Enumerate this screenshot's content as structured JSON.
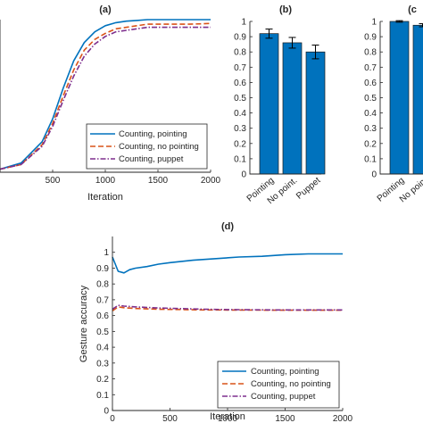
{
  "colors": {
    "pointing": "#0072BD",
    "no_pointing": "#D95319",
    "puppet": "#7E2F8E",
    "bar": "#0072BD"
  },
  "chart_data": [
    {
      "id": "a",
      "type": "line",
      "title": "(a)",
      "xlabel": "Iteration",
      "ylabel": "",
      "xlim": [
        0,
        2000
      ],
      "ylim": [
        0,
        1
      ],
      "xticks": [
        500,
        1000,
        1500,
        2000
      ],
      "legend_position": "bottom-right",
      "series": [
        {
          "name": "Counting, pointing",
          "style": "solid",
          "x": [
            0,
            200,
            400,
            500,
            600,
            700,
            800,
            900,
            1000,
            1100,
            1200,
            1300,
            1400,
            1600,
            1800,
            2000
          ],
          "y": [
            0.02,
            0.06,
            0.2,
            0.35,
            0.55,
            0.73,
            0.85,
            0.92,
            0.96,
            0.98,
            0.99,
            0.995,
            1.0,
            1.0,
            1.0,
            1.0
          ]
        },
        {
          "name": "Counting, no pointing",
          "style": "dashed",
          "x": [
            0,
            200,
            400,
            500,
            600,
            700,
            800,
            900,
            1000,
            1100,
            1200,
            1300,
            1400,
            1600,
            1800,
            2000
          ],
          "y": [
            0.02,
            0.05,
            0.18,
            0.32,
            0.5,
            0.67,
            0.8,
            0.87,
            0.91,
            0.94,
            0.95,
            0.96,
            0.97,
            0.97,
            0.97,
            0.975
          ]
        },
        {
          "name": "Counting, puppet",
          "style": "dashdot",
          "x": [
            0,
            200,
            400,
            500,
            600,
            700,
            800,
            900,
            1000,
            1100,
            1200,
            1300,
            1400,
            1600,
            1800,
            2000
          ],
          "y": [
            0.02,
            0.05,
            0.17,
            0.3,
            0.47,
            0.63,
            0.76,
            0.84,
            0.89,
            0.92,
            0.93,
            0.94,
            0.95,
            0.95,
            0.95,
            0.95
          ]
        }
      ]
    },
    {
      "id": "b",
      "type": "bar",
      "title": "(b)",
      "ylim": [
        0,
        1
      ],
      "yticks": [
        0,
        0.1,
        0.2,
        0.3,
        0.4,
        0.5,
        0.6,
        0.7,
        0.8,
        0.9,
        1
      ],
      "categories": [
        "Pointing",
        "No point.",
        "Puppet"
      ],
      "values": [
        0.92,
        0.86,
        0.8
      ],
      "errors": [
        0.03,
        0.035,
        0.045
      ]
    },
    {
      "id": "c",
      "type": "bar",
      "title": "(c",
      "ylim": [
        0,
        1
      ],
      "yticks": [
        0,
        0.1,
        0.2,
        0.3,
        0.4,
        0.5,
        0.6,
        0.7,
        0.8,
        0.9,
        1
      ],
      "categories": [
        "Pointing",
        "No point"
      ],
      "values": [
        1.0,
        0.975
      ],
      "errors": [
        0.005,
        0.01
      ]
    },
    {
      "id": "d",
      "type": "line",
      "title": "(d)",
      "xlabel": "Iteration",
      "ylabel": "Gesture accuracy",
      "xlim": [
        0,
        2000
      ],
      "ylim": [
        0,
        1.1
      ],
      "xticks": [
        0,
        500,
        1000,
        1500,
        2000
      ],
      "yticks": [
        0,
        0.1,
        0.2,
        0.3,
        0.4,
        0.5,
        0.6,
        0.7,
        0.8,
        0.9,
        1
      ],
      "legend_position": "bottom-right",
      "series": [
        {
          "name": "Counting, pointing",
          "style": "solid",
          "x": [
            0,
            50,
            100,
            150,
            200,
            300,
            400,
            500,
            700,
            900,
            1100,
            1300,
            1500,
            1700,
            2000
          ],
          "y": [
            0.97,
            0.88,
            0.87,
            0.89,
            0.9,
            0.91,
            0.925,
            0.935,
            0.95,
            0.96,
            0.97,
            0.975,
            0.985,
            0.99,
            0.99
          ]
        },
        {
          "name": "Counting, no pointing",
          "style": "dashed",
          "x": [
            0,
            50,
            100,
            200,
            400,
            600,
            800,
            1000,
            1200,
            1400,
            1600,
            1800,
            2000
          ],
          "y": [
            0.63,
            0.655,
            0.65,
            0.645,
            0.64,
            0.638,
            0.636,
            0.635,
            0.635,
            0.634,
            0.634,
            0.634,
            0.634
          ]
        },
        {
          "name": "Counting, puppet",
          "style": "dashdot",
          "x": [
            0,
            50,
            100,
            200,
            400,
            600,
            800,
            1000,
            1200,
            1400,
            1600,
            1800,
            2000
          ],
          "y": [
            0.64,
            0.665,
            0.66,
            0.655,
            0.648,
            0.644,
            0.64,
            0.638,
            0.637,
            0.636,
            0.636,
            0.636,
            0.636
          ]
        }
      ]
    }
  ]
}
